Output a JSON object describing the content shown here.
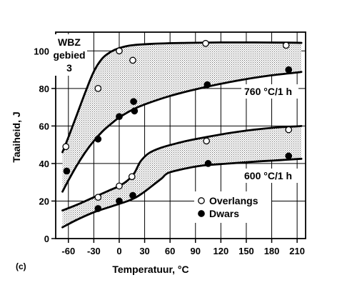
{
  "chart_data": {
    "type": "scatter",
    "panel_label": "(c)",
    "xlabel": "Temperatuur, °C",
    "ylabel": "Taaiheid, J",
    "xlim": [
      -75,
      220
    ],
    "ylim": [
      0,
      110
    ],
    "x_ticks": [
      -60,
      -30,
      0,
      30,
      60,
      90,
      120,
      150,
      180,
      210
    ],
    "y_ticks": [
      0,
      20,
      40,
      60,
      80,
      100
    ],
    "grid": true,
    "annotations": {
      "wbz_line1": "WBZ",
      "wbz_line2": "gebied",
      "wbz_line3": "3",
      "band_760": "760 °C/1 h",
      "band_600": "600 °C/1 h"
    },
    "legend": {
      "position": "lower-right",
      "entries": [
        {
          "label": "Overlangs",
          "marker": "open-circle"
        },
        {
          "label": "Dwars",
          "marker": "filled-circle"
        }
      ]
    },
    "bands": [
      {
        "name": "WBZ gebied 3",
        "upper": [
          [
            -67,
            46
          ],
          [
            -60,
            54
          ],
          [
            -50,
            66
          ],
          [
            -40,
            78
          ],
          [
            -30,
            89
          ],
          [
            -20,
            96
          ],
          [
            -10,
            99.5
          ],
          [
            0,
            101.5
          ],
          [
            15,
            103
          ],
          [
            40,
            103.8
          ],
          [
            80,
            104.3
          ],
          [
            120,
            104.5
          ],
          [
            160,
            104.5
          ],
          [
            200,
            104.4
          ],
          [
            215,
            104.3
          ]
        ],
        "lower": [
          [
            -67,
            25
          ],
          [
            -60,
            31
          ],
          [
            -50,
            39
          ],
          [
            -40,
            46
          ],
          [
            -30,
            52
          ],
          [
            -20,
            57
          ],
          [
            -10,
            61
          ],
          [
            0,
            64.5
          ],
          [
            15,
            68.5
          ],
          [
            30,
            71.5
          ],
          [
            60,
            76
          ],
          [
            90,
            79.5
          ],
          [
            120,
            82.5
          ],
          [
            150,
            85
          ],
          [
            180,
            87
          ],
          [
            210,
            88.5
          ],
          [
            215,
            88.8
          ]
        ]
      },
      {
        "name": "600 °C/1 h",
        "upper": [
          [
            -67,
            15
          ],
          [
            -50,
            18
          ],
          [
            -30,
            22
          ],
          [
            -10,
            26
          ],
          [
            0,
            28
          ],
          [
            10,
            31
          ],
          [
            18,
            35
          ],
          [
            25,
            41
          ],
          [
            35,
            45.5
          ],
          [
            50,
            48.5
          ],
          [
            70,
            51
          ],
          [
            90,
            53
          ],
          [
            120,
            55.5
          ],
          [
            150,
            57.5
          ],
          [
            180,
            59
          ],
          [
            210,
            59.8
          ],
          [
            215,
            60
          ]
        ],
        "lower": [
          [
            -67,
            6
          ],
          [
            -50,
            10
          ],
          [
            -30,
            14
          ],
          [
            -10,
            17
          ],
          [
            0,
            18.5
          ],
          [
            10,
            20
          ],
          [
            20,
            22
          ],
          [
            30,
            25
          ],
          [
            40,
            28.5
          ],
          [
            50,
            32
          ],
          [
            58,
            35
          ],
          [
            80,
            37.5
          ],
          [
            100,
            39
          ],
          [
            130,
            40
          ],
          [
            160,
            41
          ],
          [
            190,
            41.8
          ],
          [
            215,
            42.5
          ]
        ]
      }
    ],
    "series": [
      {
        "name": "Overlangs",
        "marker": "open",
        "points": [
          [
            -63,
            49
          ],
          [
            -25,
            80
          ],
          [
            0,
            100
          ],
          [
            16,
            95
          ],
          [
            102,
            104
          ],
          [
            197,
            103
          ],
          [
            -25,
            22
          ],
          [
            0,
            28
          ],
          [
            15,
            33
          ],
          [
            103,
            52
          ],
          [
            200,
            58
          ]
        ]
      },
      {
        "name": "Dwars",
        "marker": "filled",
        "points": [
          [
            -62,
            36
          ],
          [
            -25,
            53
          ],
          [
            0,
            65
          ],
          [
            17,
            73
          ],
          [
            18,
            68
          ],
          [
            104,
            82
          ],
          [
            200,
            90
          ],
          [
            -25,
            16
          ],
          [
            0,
            20
          ],
          [
            16,
            23
          ],
          [
            105,
            40
          ],
          [
            200,
            44
          ]
        ]
      }
    ]
  }
}
